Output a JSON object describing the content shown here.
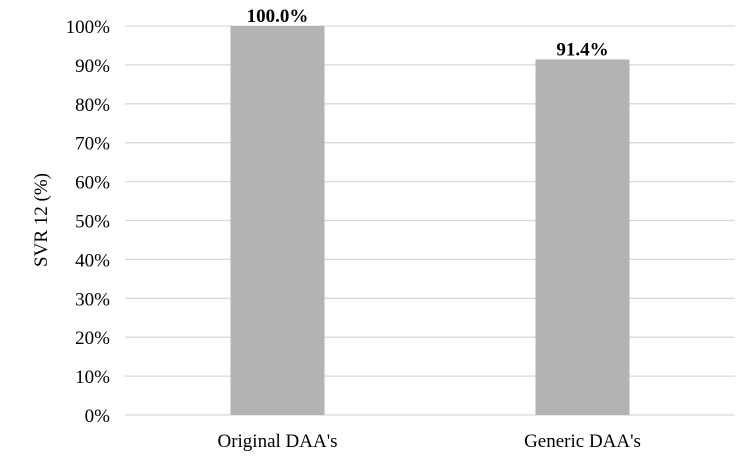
{
  "chart_data": {
    "type": "bar",
    "categories": [
      "Original DAA's",
      "Generic DAA's"
    ],
    "values": [
      100.0,
      91.4
    ],
    "data_labels": [
      "100.0%",
      "91.4%"
    ],
    "title": "",
    "xlabel": "",
    "ylabel": "SVR 12 (%)",
    "ylim": [
      0,
      100
    ],
    "yticks": [
      0,
      10,
      20,
      30,
      40,
      50,
      60,
      70,
      80,
      90,
      100
    ],
    "ytick_labels": [
      "0%",
      "10%",
      "20%",
      "30%",
      "40%",
      "50%",
      "60%",
      "70%",
      "80%",
      "90%",
      "100%"
    ],
    "grid": true,
    "legend": "none",
    "bar_color": "#b3b3b3",
    "grid_color": "#d9d9d9"
  }
}
